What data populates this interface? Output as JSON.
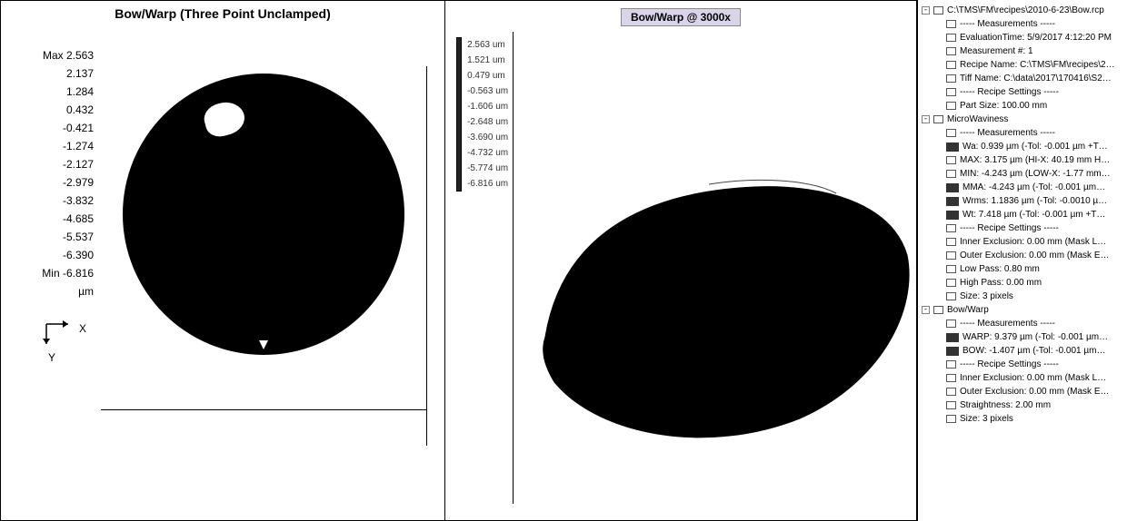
{
  "leftPanel": {
    "title": "Bow/Warp (Three Point Unclamped)",
    "scale": [
      "Max 2.563",
      "2.137",
      "1.284",
      "0.432",
      "-0.421",
      "-1.274",
      "-2.127",
      "-2.979",
      "-3.832",
      "-4.685",
      "-5.537",
      "-6.390",
      "Min -6.816",
      "µm"
    ],
    "axes": {
      "x": "X",
      "y": "Y"
    },
    "waferColor": "#000000",
    "spotColor": "#ffffff"
  },
  "midPanel": {
    "title": "Bow/Warp @ 3000x",
    "scale": [
      "2.563 um",
      "1.521 um",
      "0.479 um",
      "-0.563 um",
      "-1.606 um",
      "-2.648 um",
      "-3.690 um",
      "-4.732 um",
      "-5.774 um",
      "-6.816 um"
    ],
    "shapeColor": "#000000"
  },
  "tree": [
    {
      "d": 0,
      "exp": "-",
      "icon": "box",
      "t": "C:\\TMS\\FM\\recipes\\2010-6-23\\Bow.rcp"
    },
    {
      "d": 1,
      "exp": "",
      "icon": "box",
      "t": "----- Measurements -----"
    },
    {
      "d": 1,
      "exp": "",
      "icon": "box",
      "t": "EvaluationTime: 5/9/2017 4:12:20 PM"
    },
    {
      "d": 1,
      "exp": "",
      "icon": "box",
      "t": "Measurement #: 1"
    },
    {
      "d": 1,
      "exp": "",
      "icon": "box",
      "t": "Recipe Name: C:\\TMS\\FM\\recipes\\2…"
    },
    {
      "d": 1,
      "exp": "",
      "icon": "box",
      "t": "Tiff Name: C:\\data\\2017\\170416\\S2…"
    },
    {
      "d": 1,
      "exp": "",
      "icon": "box",
      "t": "----- Recipe Settings -----"
    },
    {
      "d": 1,
      "exp": "",
      "icon": "box",
      "t": "Part Size: 100.00 mm"
    },
    {
      "d": 0,
      "exp": "-",
      "icon": "box",
      "t": "MicroWaviness"
    },
    {
      "d": 1,
      "exp": "",
      "icon": "box",
      "t": "----- Measurements -----"
    },
    {
      "d": 1,
      "exp": "",
      "icon": "bar",
      "t": "Wa: 0.939 µm (-Tol: -0.001 µm +T…"
    },
    {
      "d": 1,
      "exp": "",
      "icon": "box",
      "t": "MAX: 3.175 µm (HI-X: 40.19 mm H…"
    },
    {
      "d": 1,
      "exp": "",
      "icon": "box",
      "t": "MIN: -4.243 µm (LOW-X: -1.77 mm…"
    },
    {
      "d": 1,
      "exp": "",
      "icon": "bar",
      "t": "MMA: -4.243 µm (-Tol: -0.001 µm…"
    },
    {
      "d": 1,
      "exp": "",
      "icon": "bar",
      "t": "Wrms: 1.1836 µm (-Tol: -0.0010 µ…"
    },
    {
      "d": 1,
      "exp": "",
      "icon": "bar",
      "t": "Wt: 7.418 µm (-Tol: -0.001 µm +T…"
    },
    {
      "d": 1,
      "exp": "",
      "icon": "box",
      "t": "----- Recipe Settings -----"
    },
    {
      "d": 1,
      "exp": "",
      "icon": "box",
      "t": "Inner Exclusion: 0.00 mm (Mask L…"
    },
    {
      "d": 1,
      "exp": "",
      "icon": "box",
      "t": "Outer Exclusion: 0.00 mm (Mask E…"
    },
    {
      "d": 1,
      "exp": "",
      "icon": "box",
      "t": "Low Pass: 0.80 mm"
    },
    {
      "d": 1,
      "exp": "",
      "icon": "box",
      "t": "High Pass: 0.00 mm"
    },
    {
      "d": 1,
      "exp": "",
      "icon": "box",
      "t": "Size: 3 pixels"
    },
    {
      "d": 0,
      "exp": "-",
      "icon": "box",
      "t": "Bow/Warp"
    },
    {
      "d": 1,
      "exp": "",
      "icon": "box",
      "t": "----- Measurements -----"
    },
    {
      "d": 1,
      "exp": "",
      "icon": "bar",
      "t": "WARP: 9.379 µm (-Tol: -0.001 µm…"
    },
    {
      "d": 1,
      "exp": "",
      "icon": "bar",
      "t": "BOW: -1.407 µm (-Tol: -0.001 µm…"
    },
    {
      "d": 1,
      "exp": "",
      "icon": "box",
      "t": "----- Recipe Settings -----"
    },
    {
      "d": 1,
      "exp": "",
      "icon": "box",
      "t": "Inner Exclusion: 0.00 mm (Mask L…"
    },
    {
      "d": 1,
      "exp": "",
      "icon": "box",
      "t": "Outer Exclusion: 0.00 mm (Mask E…"
    },
    {
      "d": 1,
      "exp": "",
      "icon": "box",
      "t": "Straightness: 2.00 mm"
    },
    {
      "d": 1,
      "exp": "",
      "icon": "box",
      "t": "Size: 3 pixels"
    }
  ]
}
